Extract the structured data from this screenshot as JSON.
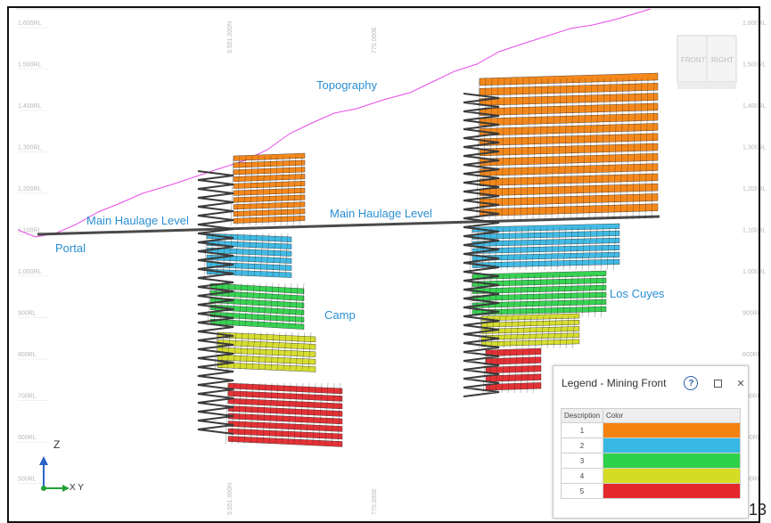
{
  "rl_labels_left": [
    "1,600RL",
    "1,500RL",
    "1,400RL",
    "1,300RL",
    "1,200RL",
    "1,100RL",
    "1,000RL",
    "900RL",
    "800RL",
    "700RL",
    "600RL",
    "500RL"
  ],
  "rl_labels_right": [
    "1,600RL",
    "1,500RL",
    "1,400RL",
    "1,300RL",
    "1,200RL",
    "1,100RL",
    "1,000RL",
    "900RL",
    "800RL",
    "700RL",
    "600RL",
    "500RL"
  ],
  "grid_coords": {
    "top_1": "9,551,000N",
    "top_2": "770,000E",
    "bottom_1": "9,551,000N",
    "bottom_2": "770,000E"
  },
  "labels": {
    "topography": "Topography",
    "main_haulage_1": "Main Haulage Level",
    "main_haulage_2": "Main Haulage Level",
    "portal": "Portal",
    "camp": "Camp",
    "los_cuyes": "Los Cuyes"
  },
  "view_cube": {
    "front": "FRONT",
    "right": "RIGHT"
  },
  "axes": {
    "z": "Z",
    "xy": "X Y"
  },
  "legend": {
    "title": "Legend - Mining Front",
    "help_icon": "?",
    "columns": [
      "Description",
      "Color"
    ],
    "rows": [
      {
        "description": "1",
        "color": "#f5820f"
      },
      {
        "description": "2",
        "color": "#37b8e4"
      },
      {
        "description": "3",
        "color": "#2ed14a"
      },
      {
        "description": "4",
        "color": "#d4dd24"
      },
      {
        "description": "5",
        "color": "#e3272b"
      }
    ]
  },
  "colors": {
    "orange": "#f5820f",
    "cyan": "#37b8e4",
    "green": "#2ed14a",
    "yellow": "#d4dd24",
    "red": "#e3272b",
    "topography": "#e84ce8",
    "labels": "#2a8fd0"
  },
  "page_number": "13"
}
